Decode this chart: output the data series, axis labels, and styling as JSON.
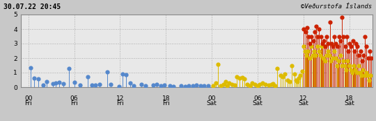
{
  "title_left": "30.07.22 20:45",
  "title_right": "©Veðurstofa Íslands",
  "fig_bg": "#c8c8c8",
  "plot_bg": "#e8e8e8",
  "grid_color": "#aaaaaa",
  "text_color": "#000000",
  "ylim": [
    0,
    5
  ],
  "yticks": [
    0,
    1,
    2,
    3,
    4,
    5
  ],
  "xtick_labels": [
    "00",
    "06",
    "12",
    "18",
    "00",
    "06",
    "12",
    "18"
  ],
  "xtick_day": [
    "Fri",
    "Fri",
    "Fri",
    "Fri",
    "Sat",
    "Sat",
    "Sat",
    "Sat"
  ],
  "xtick_positions": [
    0,
    6,
    12,
    18,
    24,
    30,
    36,
    42
  ],
  "xlim": [
    -1,
    45
  ],
  "blue_color": "#5588cc",
  "yellow_color": "#ddbb00",
  "red_color": "#cc2200",
  "stem_lw": 0.7,
  "marker_size": 4.5,
  "blue_quakes": [
    [
      0.3,
      1.35
    ],
    [
      0.8,
      0.6
    ],
    [
      1.3,
      0.55
    ],
    [
      1.9,
      0.12
    ],
    [
      2.4,
      0.4
    ],
    [
      3.2,
      0.25
    ],
    [
      3.6,
      0.3
    ],
    [
      4.0,
      0.35
    ],
    [
      4.6,
      0.25
    ],
    [
      5.3,
      1.3
    ],
    [
      6.0,
      0.35
    ],
    [
      6.8,
      0.15
    ],
    [
      7.8,
      0.7
    ],
    [
      8.3,
      0.15
    ],
    [
      8.8,
      0.15
    ],
    [
      9.3,
      0.2
    ],
    [
      10.3,
      1.05
    ],
    [
      10.8,
      0.2
    ],
    [
      11.9,
      0.05
    ],
    [
      12.3,
      0.9
    ],
    [
      12.8,
      0.85
    ],
    [
      13.3,
      0.3
    ],
    [
      13.8,
      0.1
    ],
    [
      14.8,
      0.2
    ],
    [
      15.3,
      0.1
    ],
    [
      16.3,
      0.15
    ],
    [
      16.8,
      0.2
    ],
    [
      17.3,
      0.1
    ],
    [
      17.8,
      0.15
    ],
    [
      18.5,
      0.1
    ],
    [
      19.0,
      0.05
    ],
    [
      20.0,
      0.1
    ],
    [
      20.5,
      0.05
    ],
    [
      21.0,
      0.1
    ],
    [
      21.5,
      0.1
    ],
    [
      22.0,
      0.15
    ],
    [
      22.5,
      0.1
    ],
    [
      23.0,
      0.1
    ],
    [
      23.5,
      0.1
    ]
  ],
  "yellow_quakes": [
    [
      24.2,
      0.1
    ],
    [
      24.5,
      0.3
    ],
    [
      24.8,
      1.55
    ],
    [
      25.2,
      0.1
    ],
    [
      25.5,
      0.2
    ],
    [
      25.8,
      0.4
    ],
    [
      26.0,
      0.1
    ],
    [
      26.3,
      0.3
    ],
    [
      26.6,
      0.2
    ],
    [
      27.0,
      0.15
    ],
    [
      27.3,
      0.7
    ],
    [
      27.6,
      0.6
    ],
    [
      28.0,
      0.65
    ],
    [
      28.3,
      0.55
    ],
    [
      28.6,
      0.2
    ],
    [
      29.0,
      0.1
    ],
    [
      29.3,
      0.3
    ],
    [
      29.6,
      0.2
    ],
    [
      30.0,
      0.1
    ],
    [
      30.3,
      0.2
    ],
    [
      30.6,
      0.3
    ],
    [
      31.0,
      0.2
    ],
    [
      31.5,
      0.15
    ],
    [
      31.8,
      0.2
    ],
    [
      32.0,
      0.25
    ],
    [
      32.3,
      0.1
    ],
    [
      32.6,
      1.3
    ],
    [
      33.0,
      0.8
    ],
    [
      33.3,
      0.7
    ],
    [
      33.6,
      0.9
    ],
    [
      33.9,
      0.5
    ],
    [
      34.2,
      0.4
    ],
    [
      34.5,
      1.5
    ],
    [
      34.8,
      0.9
    ],
    [
      35.0,
      0.5
    ],
    [
      35.2,
      0.4
    ],
    [
      35.4,
      0.6
    ],
    [
      35.6,
      0.8
    ],
    [
      35.8,
      1.1
    ],
    [
      36.0,
      2.8
    ],
    [
      36.2,
      2.5
    ],
    [
      36.4,
      2.2
    ],
    [
      36.6,
      2.5
    ],
    [
      36.8,
      2.0
    ],
    [
      37.0,
      2.8
    ],
    [
      37.2,
      2.2
    ],
    [
      37.4,
      2.5
    ],
    [
      37.6,
      2.2
    ],
    [
      37.8,
      2.8
    ],
    [
      38.0,
      2.5
    ],
    [
      38.2,
      2.2
    ],
    [
      38.4,
      2.8
    ],
    [
      38.6,
      2.0
    ],
    [
      38.8,
      1.8
    ],
    [
      39.0,
      2.2
    ],
    [
      39.2,
      2.5
    ],
    [
      39.4,
      2.2
    ],
    [
      39.6,
      1.8
    ],
    [
      39.8,
      2.0
    ],
    [
      40.0,
      2.5
    ],
    [
      40.2,
      2.0
    ],
    [
      40.4,
      1.5
    ],
    [
      40.6,
      1.8
    ],
    [
      40.8,
      2.2
    ],
    [
      41.0,
      1.5
    ],
    [
      41.2,
      1.8
    ],
    [
      41.4,
      1.5
    ],
    [
      41.6,
      1.2
    ],
    [
      41.8,
      1.8
    ],
    [
      42.0,
      1.5
    ],
    [
      42.2,
      1.2
    ],
    [
      42.4,
      1.0
    ],
    [
      42.6,
      1.5
    ],
    [
      42.8,
      1.2
    ],
    [
      43.0,
      1.0
    ],
    [
      43.2,
      1.5
    ],
    [
      43.4,
      1.0
    ],
    [
      43.6,
      0.8
    ],
    [
      43.8,
      1.2
    ],
    [
      44.0,
      0.8
    ],
    [
      44.2,
      1.0
    ],
    [
      44.4,
      0.8
    ],
    [
      44.6,
      0.5
    ],
    [
      44.8,
      0.8
    ]
  ],
  "red_quakes": [
    [
      36.05,
      4.0
    ],
    [
      36.25,
      3.8
    ],
    [
      36.45,
      4.1
    ],
    [
      36.65,
      3.5
    ],
    [
      36.85,
      3.0
    ],
    [
      37.05,
      3.5
    ],
    [
      37.25,
      3.2
    ],
    [
      37.45,
      3.8
    ],
    [
      37.65,
      4.2
    ],
    [
      37.85,
      3.5
    ],
    [
      38.05,
      4.0
    ],
    [
      38.25,
      3.5
    ],
    [
      38.45,
      3.0
    ],
    [
      38.65,
      3.2
    ],
    [
      38.85,
      2.8
    ],
    [
      39.05,
      3.5
    ],
    [
      39.25,
      3.0
    ],
    [
      39.45,
      4.5
    ],
    [
      39.65,
      3.0
    ],
    [
      39.85,
      2.8
    ],
    [
      40.05,
      3.5
    ],
    [
      40.25,
      3.0
    ],
    [
      40.45,
      2.8
    ],
    [
      40.65,
      3.5
    ],
    [
      40.85,
      3.2
    ],
    [
      41.05,
      4.8
    ],
    [
      41.25,
      3.5
    ],
    [
      41.45,
      2.8
    ],
    [
      41.65,
      3.5
    ],
    [
      41.85,
      2.5
    ],
    [
      42.05,
      3.0
    ],
    [
      42.25,
      2.8
    ],
    [
      42.45,
      3.2
    ],
    [
      42.65,
      2.5
    ],
    [
      42.85,
      3.0
    ],
    [
      43.05,
      2.8
    ],
    [
      43.25,
      2.2
    ],
    [
      43.45,
      2.5
    ],
    [
      43.65,
      1.8
    ],
    [
      43.85,
      2.2
    ],
    [
      44.05,
      3.5
    ],
    [
      44.25,
      2.8
    ],
    [
      44.45,
      2.0
    ],
    [
      44.65,
      2.5
    ],
    [
      44.85,
      2.0
    ]
  ]
}
